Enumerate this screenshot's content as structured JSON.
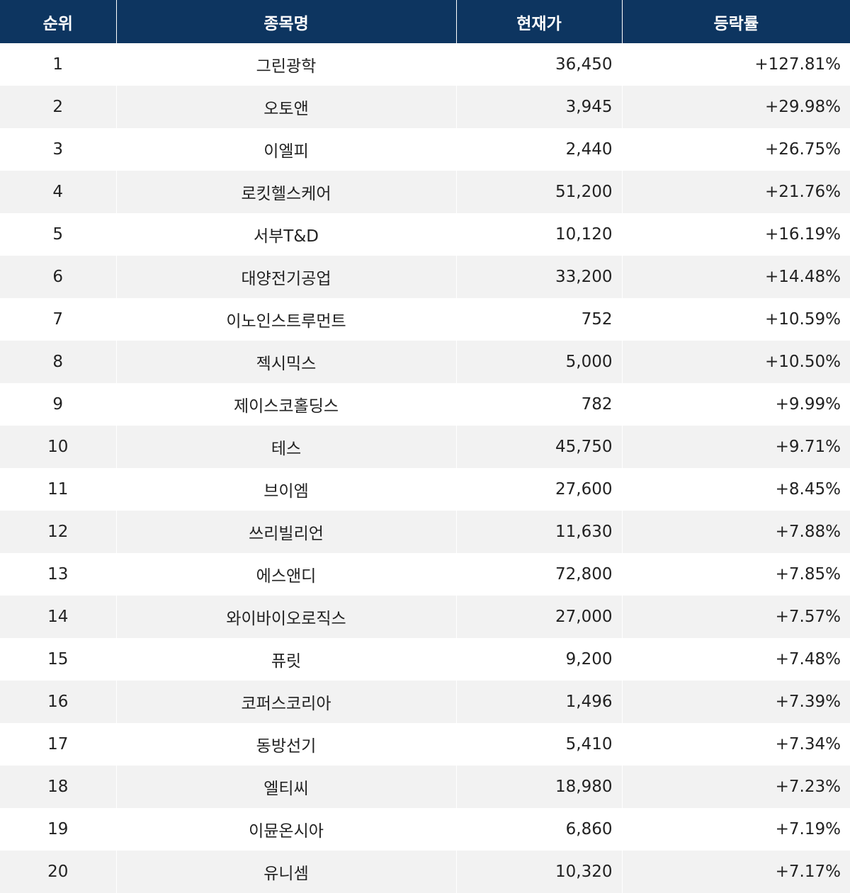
{
  "table": {
    "headers": {
      "rank": "순위",
      "name": "종목명",
      "price": "현재가",
      "rate": "등락률"
    },
    "rows": [
      {
        "rank": "1",
        "name": "그린광학",
        "price": "36,450",
        "rate": "+127.81%"
      },
      {
        "rank": "2",
        "name": "오토앤",
        "price": "3,945",
        "rate": "+29.98%"
      },
      {
        "rank": "3",
        "name": "이엘피",
        "price": "2,440",
        "rate": "+26.75%"
      },
      {
        "rank": "4",
        "name": "로킷헬스케어",
        "price": "51,200",
        "rate": "+21.76%"
      },
      {
        "rank": "5",
        "name": "서부T&D",
        "price": "10,120",
        "rate": "+16.19%"
      },
      {
        "rank": "6",
        "name": "대양전기공업",
        "price": "33,200",
        "rate": "+14.48%"
      },
      {
        "rank": "7",
        "name": "이노인스트루먼트",
        "price": "752",
        "rate": "+10.59%"
      },
      {
        "rank": "8",
        "name": "젝시믹스",
        "price": "5,000",
        "rate": "+10.50%"
      },
      {
        "rank": "9",
        "name": "제이스코홀딩스",
        "price": "782",
        "rate": "+9.99%"
      },
      {
        "rank": "10",
        "name": "테스",
        "price": "45,750",
        "rate": "+9.71%"
      },
      {
        "rank": "11",
        "name": "브이엠",
        "price": "27,600",
        "rate": "+8.45%"
      },
      {
        "rank": "12",
        "name": "쓰리빌리언",
        "price": "11,630",
        "rate": "+7.88%"
      },
      {
        "rank": "13",
        "name": "에스앤디",
        "price": "72,800",
        "rate": "+7.85%"
      },
      {
        "rank": "14",
        "name": "와이바이오로직스",
        "price": "27,000",
        "rate": "+7.57%"
      },
      {
        "rank": "15",
        "name": "퓨릿",
        "price": "9,200",
        "rate": "+7.48%"
      },
      {
        "rank": "16",
        "name": "코퍼스코리아",
        "price": "1,496",
        "rate": "+7.39%"
      },
      {
        "rank": "17",
        "name": "동방선기",
        "price": "5,410",
        "rate": "+7.34%"
      },
      {
        "rank": "18",
        "name": "엘티씨",
        "price": "18,980",
        "rate": "+7.23%"
      },
      {
        "rank": "19",
        "name": "이뮨온시아",
        "price": "6,860",
        "rate": "+7.19%"
      },
      {
        "rank": "20",
        "name": "유니셈",
        "price": "10,320",
        "rate": "+7.17%"
      }
    ]
  },
  "colors": {
    "header_bg": "#0d3560",
    "header_text": "#ffffff",
    "row_alt_bg": "#f2f2f2",
    "cell_text": "#222222"
  }
}
